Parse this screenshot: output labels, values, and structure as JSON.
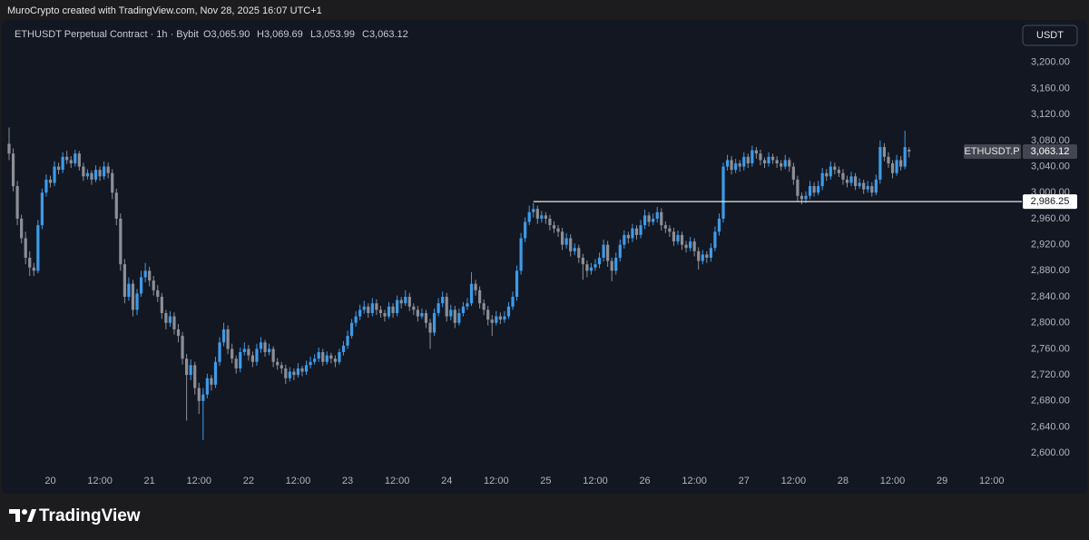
{
  "header": {
    "credit": "MuroCrypto created with TradingView.com, Nov 28, 2025 16:07 UTC+1"
  },
  "chart_data": {
    "type": "candlestick",
    "title": "ETHUSDT Perpetual Contract · 1h · Bybit",
    "last_labels": [
      "O3,065.90",
      "H3,069.69",
      "L3,053.99",
      "C3,063.12"
    ],
    "currency": "USDT",
    "symbol_label": "ETHUSDT.P",
    "last_price_label": "3,063.12",
    "level": {
      "value": 2986.25,
      "label": "2,986.25"
    },
    "up_color": "#3d9be9",
    "down_color": "#8c8f96",
    "level_color": "#e8e8e8",
    "grid": false,
    "xlim": [
      0,
      244
    ],
    "xticks": [
      {
        "value": 10,
        "label": "20"
      },
      {
        "value": 22,
        "label": "12:00"
      },
      {
        "value": 34,
        "label": "21"
      },
      {
        "value": 46,
        "label": "12:00"
      },
      {
        "value": 58,
        "label": "22"
      },
      {
        "value": 70,
        "label": "12:00"
      },
      {
        "value": 82,
        "label": "23"
      },
      {
        "value": 94,
        "label": "12:00"
      },
      {
        "value": 106,
        "label": "24"
      },
      {
        "value": 118,
        "label": "12:00"
      },
      {
        "value": 130,
        "label": "25"
      },
      {
        "value": 142,
        "label": "12:00"
      },
      {
        "value": 154,
        "label": "26"
      },
      {
        "value": 166,
        "label": "12:00"
      },
      {
        "value": 178,
        "label": "27"
      },
      {
        "value": 190,
        "label": "12:00"
      },
      {
        "value": 202,
        "label": "28"
      },
      {
        "value": 214,
        "label": "12:00"
      },
      {
        "value": 226,
        "label": "29"
      },
      {
        "value": 238,
        "label": "12:00"
      }
    ],
    "ylim": [
      2578,
      3261
    ],
    "yticks": [
      {
        "value": 2600,
        "label": "2,600.00"
      },
      {
        "value": 2640,
        "label": "2,640.00"
      },
      {
        "value": 2680,
        "label": "2,680.00"
      },
      {
        "value": 2720,
        "label": "2,720.00"
      },
      {
        "value": 2760,
        "label": "2,760.00"
      },
      {
        "value": 2800,
        "label": "2,800.00"
      },
      {
        "value": 2840,
        "label": "2,840.00"
      },
      {
        "value": 2880,
        "label": "2,880.00"
      },
      {
        "value": 2920,
        "label": "2,920.00"
      },
      {
        "value": 2960,
        "label": "2,960.00"
      },
      {
        "value": 3000,
        "label": "3,000.00"
      },
      {
        "value": 3040,
        "label": "3,040.00"
      },
      {
        "value": 3080,
        "label": "3,080.00"
      },
      {
        "value": 3120,
        "label": "3,120.00"
      },
      {
        "value": 3160,
        "label": "3,160.00"
      },
      {
        "value": 3200,
        "label": "3,200.00"
      }
    ],
    "ohlc": [
      [
        3075,
        3100,
        3050,
        3060
      ],
      [
        3060,
        3068,
        3002,
        3010
      ],
      [
        3010,
        3018,
        2950,
        2960
      ],
      [
        2960,
        2966,
        2922,
        2930
      ],
      [
        2930,
        2940,
        2890,
        2900
      ],
      [
        2900,
        2910,
        2872,
        2885
      ],
      [
        2885,
        2892,
        2872,
        2880
      ],
      [
        2880,
        2958,
        2876,
        2950
      ],
      [
        2950,
        3006,
        2944,
        3000
      ],
      [
        3000,
        3028,
        2994,
        3020
      ],
      [
        3020,
        3026,
        3008,
        3015
      ],
      [
        3015,
        3048,
        3010,
        3040
      ],
      [
        3040,
        3046,
        3028,
        3035
      ],
      [
        3035,
        3062,
        3030,
        3055
      ],
      [
        3055,
        3064,
        3044,
        3050
      ],
      [
        3050,
        3056,
        3038,
        3045
      ],
      [
        3045,
        3066,
        3040,
        3060
      ],
      [
        3060,
        3064,
        3034,
        3040
      ],
      [
        3040,
        3046,
        3018,
        3025
      ],
      [
        3025,
        3036,
        3020,
        3030
      ],
      [
        3030,
        3034,
        3012,
        3020
      ],
      [
        3020,
        3042,
        3016,
        3035
      ],
      [
        3035,
        3040,
        3018,
        3025
      ],
      [
        3025,
        3048,
        3020,
        3040
      ],
      [
        3040,
        3046,
        3022,
        3030
      ],
      [
        3030,
        3036,
        2990,
        3000
      ],
      [
        3000,
        3006,
        2950,
        2960
      ],
      [
        2960,
        2968,
        2880,
        2890
      ],
      [
        2890,
        2898,
        2830,
        2840
      ],
      [
        2840,
        2870,
        2834,
        2860
      ],
      [
        2860,
        2866,
        2810,
        2820
      ],
      [
        2820,
        2852,
        2812,
        2845
      ],
      [
        2845,
        2880,
        2840,
        2870
      ],
      [
        2870,
        2892,
        2862,
        2880
      ],
      [
        2880,
        2886,
        2856,
        2865
      ],
      [
        2865,
        2872,
        2842,
        2850
      ],
      [
        2850,
        2858,
        2832,
        2840
      ],
      [
        2840,
        2846,
        2806,
        2815
      ],
      [
        2815,
        2820,
        2790,
        2800
      ],
      [
        2800,
        2818,
        2794,
        2810
      ],
      [
        2810,
        2816,
        2782,
        2790
      ],
      [
        2790,
        2798,
        2770,
        2780
      ],
      [
        2780,
        2786,
        2736,
        2745
      ],
      [
        2745,
        2752,
        2650,
        2720
      ],
      [
        2720,
        2744,
        2712,
        2735
      ],
      [
        2735,
        2740,
        2690,
        2700
      ],
      [
        2700,
        2708,
        2660,
        2680
      ],
      [
        2680,
        2700,
        2620,
        2690
      ],
      [
        2690,
        2722,
        2684,
        2715
      ],
      [
        2715,
        2720,
        2696,
        2705
      ],
      [
        2705,
        2748,
        2700,
        2740
      ],
      [
        2740,
        2778,
        2734,
        2770
      ],
      [
        2770,
        2800,
        2764,
        2790
      ],
      [
        2790,
        2796,
        2752,
        2760
      ],
      [
        2760,
        2768,
        2738,
        2745
      ],
      [
        2745,
        2750,
        2722,
        2730
      ],
      [
        2730,
        2762,
        2724,
        2755
      ],
      [
        2755,
        2770,
        2750,
        2760
      ],
      [
        2760,
        2766,
        2742,
        2750
      ],
      [
        2750,
        2756,
        2732,
        2740
      ],
      [
        2740,
        2768,
        2734,
        2760
      ],
      [
        2760,
        2778,
        2754,
        2770
      ],
      [
        2770,
        2774,
        2748,
        2755
      ],
      [
        2755,
        2768,
        2750,
        2760
      ],
      [
        2760,
        2764,
        2732,
        2740
      ],
      [
        2740,
        2746,
        2728,
        2735
      ],
      [
        2735,
        2740,
        2722,
        2730
      ],
      [
        2730,
        2736,
        2706,
        2715
      ],
      [
        2715,
        2732,
        2710,
        2725
      ],
      [
        2725,
        2730,
        2712,
        2720
      ],
      [
        2720,
        2738,
        2716,
        2730
      ],
      [
        2730,
        2734,
        2718,
        2725
      ],
      [
        2725,
        2742,
        2720,
        2735
      ],
      [
        2735,
        2748,
        2730,
        2740
      ],
      [
        2740,
        2752,
        2736,
        2745
      ],
      [
        2745,
        2762,
        2740,
        2755
      ],
      [
        2755,
        2760,
        2734,
        2740
      ],
      [
        2740,
        2756,
        2736,
        2750
      ],
      [
        2750,
        2754,
        2738,
        2745
      ],
      [
        2745,
        2750,
        2732,
        2740
      ],
      [
        2740,
        2760,
        2736,
        2755
      ],
      [
        2755,
        2772,
        2750,
        2765
      ],
      [
        2765,
        2788,
        2760,
        2780
      ],
      [
        2780,
        2806,
        2776,
        2800
      ],
      [
        2800,
        2818,
        2794,
        2810
      ],
      [
        2810,
        2828,
        2804,
        2820
      ],
      [
        2820,
        2834,
        2814,
        2825
      ],
      [
        2825,
        2830,
        2808,
        2815
      ],
      [
        2815,
        2838,
        2810,
        2830
      ],
      [
        2830,
        2836,
        2812,
        2820
      ],
      [
        2820,
        2826,
        2808,
        2815
      ],
      [
        2815,
        2820,
        2802,
        2810
      ],
      [
        2810,
        2832,
        2806,
        2825
      ],
      [
        2825,
        2830,
        2808,
        2815
      ],
      [
        2815,
        2842,
        2810,
        2835
      ],
      [
        2835,
        2840,
        2822,
        2830
      ],
      [
        2830,
        2850,
        2826,
        2840
      ],
      [
        2840,
        2846,
        2818,
        2825
      ],
      [
        2825,
        2830,
        2812,
        2820
      ],
      [
        2820,
        2826,
        2802,
        2810
      ],
      [
        2810,
        2822,
        2806,
        2815
      ],
      [
        2815,
        2820,
        2792,
        2800
      ],
      [
        2800,
        2806,
        2760,
        2785
      ],
      [
        2785,
        2822,
        2780,
        2815
      ],
      [
        2815,
        2838,
        2810,
        2830
      ],
      [
        2830,
        2848,
        2824,
        2840
      ],
      [
        2840,
        2846,
        2802,
        2810
      ],
      [
        2810,
        2828,
        2804,
        2820
      ],
      [
        2820,
        2826,
        2792,
        2800
      ],
      [
        2800,
        2822,
        2796,
        2815
      ],
      [
        2815,
        2832,
        2810,
        2825
      ],
      [
        2825,
        2838,
        2820,
        2830
      ],
      [
        2830,
        2878,
        2826,
        2860
      ],
      [
        2860,
        2866,
        2842,
        2850
      ],
      [
        2850,
        2856,
        2822,
        2830
      ],
      [
        2830,
        2836,
        2812,
        2820
      ],
      [
        2820,
        2826,
        2796,
        2805
      ],
      [
        2805,
        2812,
        2780,
        2800
      ],
      [
        2800,
        2818,
        2796,
        2810
      ],
      [
        2810,
        2816,
        2798,
        2805
      ],
      [
        2805,
        2818,
        2800,
        2810
      ],
      [
        2810,
        2832,
        2806,
        2825
      ],
      [
        2825,
        2848,
        2820,
        2840
      ],
      [
        2840,
        2888,
        2834,
        2880
      ],
      [
        2880,
        2938,
        2874,
        2930
      ],
      [
        2930,
        2962,
        2924,
        2955
      ],
      [
        2955,
        2980,
        2950,
        2970
      ],
      [
        2970,
        2984,
        2962,
        2975
      ],
      [
        2975,
        2980,
        2952,
        2960
      ],
      [
        2960,
        2972,
        2954,
        2965
      ],
      [
        2965,
        2970,
        2952,
        2960
      ],
      [
        2960,
        2966,
        2942,
        2950
      ],
      [
        2950,
        2956,
        2938,
        2945
      ],
      [
        2945,
        2950,
        2932,
        2940
      ],
      [
        2940,
        2946,
        2912,
        2920
      ],
      [
        2920,
        2938,
        2914,
        2930
      ],
      [
        2930,
        2936,
        2902,
        2910
      ],
      [
        2910,
        2922,
        2904,
        2915
      ],
      [
        2915,
        2920,
        2892,
        2900
      ],
      [
        2900,
        2906,
        2866,
        2890
      ],
      [
        2890,
        2896,
        2870,
        2880
      ],
      [
        2880,
        2892,
        2874,
        2885
      ],
      [
        2885,
        2898,
        2880,
        2890
      ],
      [
        2890,
        2908,
        2884,
        2900
      ],
      [
        2900,
        2928,
        2894,
        2920
      ],
      [
        2920,
        2926,
        2886,
        2895
      ],
      [
        2895,
        2900,
        2864,
        2880
      ],
      [
        2880,
        2908,
        2874,
        2900
      ],
      [
        2900,
        2928,
        2894,
        2920
      ],
      [
        2920,
        2942,
        2914,
        2935
      ],
      [
        2935,
        2940,
        2922,
        2930
      ],
      [
        2930,
        2952,
        2924,
        2945
      ],
      [
        2945,
        2950,
        2928,
        2935
      ],
      [
        2935,
        2958,
        2930,
        2950
      ],
      [
        2950,
        2974,
        2944,
        2965
      ],
      [
        2965,
        2970,
        2948,
        2955
      ],
      [
        2955,
        2968,
        2950,
        2960
      ],
      [
        2960,
        2978,
        2954,
        2970
      ],
      [
        2970,
        2976,
        2942,
        2950
      ],
      [
        2950,
        2956,
        2938,
        2945
      ],
      [
        2945,
        2950,
        2932,
        2940
      ],
      [
        2940,
        2946,
        2918,
        2925
      ],
      [
        2925,
        2942,
        2920,
        2935
      ],
      [
        2935,
        2940,
        2912,
        2920
      ],
      [
        2920,
        2926,
        2908,
        2915
      ],
      [
        2915,
        2932,
        2910,
        2925
      ],
      [
        2925,
        2930,
        2902,
        2910
      ],
      [
        2910,
        2916,
        2882,
        2895
      ],
      [
        2895,
        2912,
        2890,
        2905
      ],
      [
        2905,
        2910,
        2892,
        2900
      ],
      [
        2900,
        2922,
        2894,
        2915
      ],
      [
        2915,
        2948,
        2910,
        2940
      ],
      [
        2940,
        2968,
        2934,
        2960
      ],
      [
        2960,
        3046,
        2954,
        3040
      ],
      [
        3040,
        3058,
        3034,
        3050
      ],
      [
        3050,
        3056,
        3028,
        3035
      ],
      [
        3035,
        3052,
        3030,
        3045
      ],
      [
        3045,
        3050,
        3032,
        3040
      ],
      [
        3040,
        3062,
        3034,
        3055
      ],
      [
        3055,
        3060,
        3038,
        3045
      ],
      [
        3045,
        3072,
        3040,
        3065
      ],
      [
        3065,
        3070,
        3052,
        3060
      ],
      [
        3060,
        3066,
        3042,
        3050
      ],
      [
        3050,
        3054,
        3038,
        3045
      ],
      [
        3045,
        3062,
        3040,
        3055
      ],
      [
        3055,
        3060,
        3044,
        3050
      ],
      [
        3050,
        3056,
        3038,
        3045
      ],
      [
        3045,
        3050,
        3034,
        3040
      ],
      [
        3040,
        3058,
        3036,
        3050
      ],
      [
        3050,
        3054,
        3032,
        3040
      ],
      [
        3040,
        3046,
        3012,
        3020
      ],
      [
        3020,
        3026,
        2986,
        2995
      ],
      [
        2995,
        3000,
        2982,
        2990
      ],
      [
        2990,
        3002,
        2984,
        2995
      ],
      [
        2995,
        3018,
        2990,
        3010
      ],
      [
        3010,
        3016,
        2994,
        3000
      ],
      [
        3000,
        3018,
        2996,
        3010
      ],
      [
        3010,
        3038,
        3004,
        3030
      ],
      [
        3030,
        3036,
        3018,
        3025
      ],
      [
        3025,
        3048,
        3020,
        3040
      ],
      [
        3040,
        3046,
        3028,
        3035
      ],
      [
        3035,
        3040,
        3024,
        3030
      ],
      [
        3030,
        3036,
        3012,
        3020
      ],
      [
        3020,
        3026,
        3008,
        3015
      ],
      [
        3015,
        3032,
        3010,
        3025
      ],
      [
        3025,
        3030,
        3004,
        3010
      ],
      [
        3010,
        3022,
        3006,
        3015
      ],
      [
        3015,
        3020,
        2998,
        3005
      ],
      [
        3005,
        3018,
        3000,
        3010
      ],
      [
        3010,
        3016,
        2994,
        3000
      ],
      [
        3000,
        3028,
        2996,
        3020
      ],
      [
        3020,
        3080,
        3014,
        3070
      ],
      [
        3070,
        3076,
        3048,
        3055
      ],
      [
        3055,
        3062,
        3038,
        3045
      ],
      [
        3045,
        3050,
        3022,
        3030
      ],
      [
        3030,
        3058,
        3026,
        3050
      ],
      [
        3050,
        3056,
        3034,
        3040
      ],
      [
        3040,
        3095,
        3036,
        3070
      ],
      [
        3065.9,
        3069.69,
        3053.99,
        3063.12
      ]
    ]
  },
  "footer": {
    "brand": "TradingView"
  }
}
